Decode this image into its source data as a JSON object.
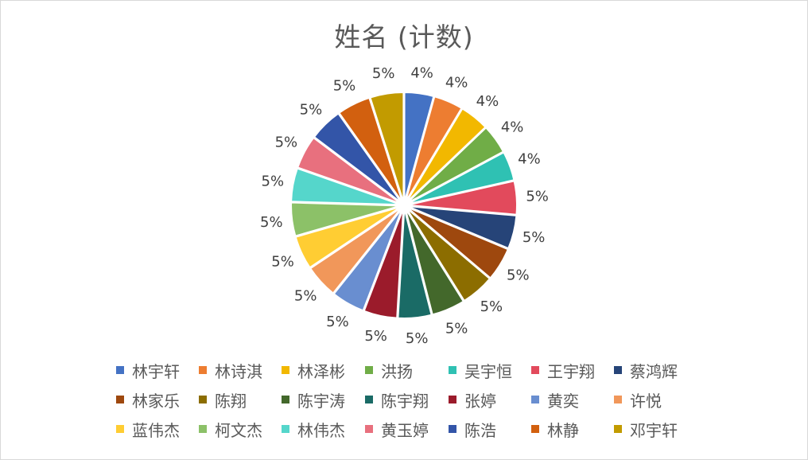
{
  "chart_data": {
    "type": "pie",
    "title": "姓名 (计数)",
    "categories": [
      "林宇轩",
      "林诗淇",
      "林泽彬",
      "洪扬",
      "吴宇恒",
      "王宇翔",
      "蔡鸿辉",
      "林家乐",
      "陈翔",
      "陈宇涛",
      "陈宇翔",
      "张婷",
      "黄奕",
      "许悦",
      "蓝伟杰",
      "柯文杰",
      "林伟杰",
      "黄玉婷",
      "陈浩",
      "林静",
      "邓宇轩"
    ],
    "values": [
      4.2,
      4.2,
      4.2,
      4.2,
      4.2,
      4.8,
      4.8,
      4.8,
      4.8,
      4.8,
      4.8,
      4.8,
      4.8,
      4.8,
      4.8,
      4.8,
      4.8,
      4.8,
      4.8,
      4.8,
      4.8
    ],
    "data_labels": [
      "4%",
      "4%",
      "4%",
      "4%",
      "4%",
      "5%",
      "5%",
      "5%",
      "5%",
      "5%",
      "5%",
      "5%",
      "5%",
      "5%",
      "5%",
      "5%",
      "5%",
      "5%",
      "5%",
      "5%",
      "5%"
    ],
    "colors": [
      "#4472C4",
      "#ED7D31",
      "#F2B800",
      "#70AD47",
      "#2FC1B3",
      "#E24A5C",
      "#264478",
      "#9E480E",
      "#8C6D00",
      "#43682B",
      "#1A6B66",
      "#9B1B2B",
      "#698ED0",
      "#F1975A",
      "#FFCD33",
      "#8CC168",
      "#55D6CB",
      "#E8707E",
      "#3355A8",
      "#D2600F",
      "#C29B00"
    ],
    "legend": "bottom"
  }
}
